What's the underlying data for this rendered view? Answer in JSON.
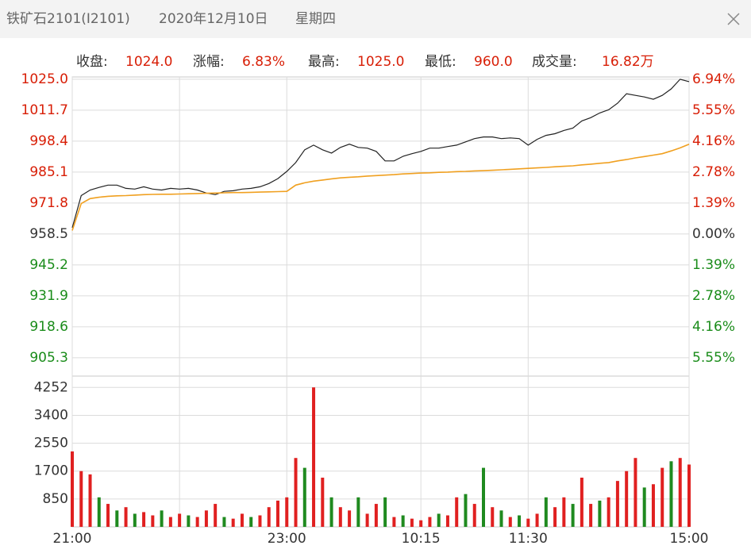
{
  "header": {
    "title": "铁矿石2101(I2101)",
    "date": "2020年12月10日",
    "weekday": "星期四"
  },
  "info": [
    {
      "label": "收盘:",
      "value": "1024.0"
    },
    {
      "label": "涨幅:",
      "value": "6.83%"
    },
    {
      "label": "最高:",
      "value": "1025.0"
    },
    {
      "label": "最低:",
      "value": "960.0"
    },
    {
      "label": "成交量:",
      "value": "16.82万"
    }
  ],
  "chart_data": [
    {
      "type": "line",
      "up_color": "#d81e06",
      "down_color": "#1a8c1a",
      "flat_color": "#333333",
      "grid": true,
      "x": [
        0,
        5,
        10,
        15,
        20,
        25,
        30,
        35,
        40,
        45,
        50,
        55,
        60,
        65,
        70,
        75,
        80,
        85,
        90,
        95,
        100,
        105,
        110,
        115,
        120,
        125,
        130,
        135,
        140,
        145,
        150,
        155,
        160,
        165,
        170,
        175,
        180,
        185,
        190,
        195,
        200,
        205,
        210,
        215,
        220,
        225,
        230,
        235,
        240,
        245,
        250,
        255,
        260,
        265,
        270,
        275,
        280,
        285,
        290,
        295,
        300,
        305,
        310,
        315,
        320,
        325,
        330,
        335,
        340,
        345
      ],
      "xlim": [
        0,
        345
      ],
      "ylim": [
        897.4,
        1026.0
      ],
      "yticks": [
        {
          "value": 1025.0,
          "label": "1025.0"
        },
        {
          "value": 1011.7,
          "label": "1011.7"
        },
        {
          "value": 998.4,
          "label": "998.4"
        },
        {
          "value": 985.1,
          "label": "985.1"
        },
        {
          "value": 971.8,
          "label": "971.8"
        },
        {
          "value": 958.5,
          "label": "958.5"
        },
        {
          "value": 945.2,
          "label": "945.2"
        },
        {
          "value": 931.9,
          "label": "931.9"
        },
        {
          "value": 918.6,
          "label": "918.6"
        },
        {
          "value": 905.3,
          "label": "905.3"
        }
      ],
      "y2lim": [
        -6.37,
        7.04
      ],
      "y2ticks": [
        {
          "value": 6.94,
          "label": "6.94%"
        },
        {
          "value": 5.55,
          "label": "5.55%"
        },
        {
          "value": 4.16,
          "label": "4.16%"
        },
        {
          "value": 2.78,
          "label": "2.78%"
        },
        {
          "value": 1.39,
          "label": "1.39%"
        },
        {
          "value": 0,
          "label": "0.00%"
        },
        {
          "value": -1.39,
          "label": "1.39%"
        },
        {
          "value": -2.78,
          "label": "2.78%"
        },
        {
          "value": -4.16,
          "label": "4.16%"
        },
        {
          "value": -5.55,
          "label": "5.55%"
        }
      ],
      "series": [
        {
          "name": "price",
          "color": "#222222",
          "values": [
            961.2,
            975.0,
            977.4,
            978.5,
            979.5,
            979.5,
            978.1,
            977.8,
            978.8,
            977.8,
            977.4,
            978.1,
            977.8,
            978.1,
            977.4,
            976.1,
            975.4,
            976.8,
            977.1,
            977.8,
            978.1,
            978.8,
            980.2,
            982.3,
            985.4,
            989.2,
            994.7,
            996.7,
            994.7,
            993.3,
            995.7,
            997.1,
            995.7,
            995.4,
            994.0,
            989.9,
            989.9,
            991.9,
            993.0,
            994.0,
            995.4,
            995.4,
            996.1,
            996.7,
            998.1,
            999.5,
            1000.2,
            1000.2,
            999.5,
            999.8,
            999.5,
            996.7,
            999.2,
            1000.9,
            1001.6,
            1003.0,
            1004.0,
            1007.1,
            1008.5,
            1010.5,
            1011.9,
            1014.7,
            1018.8,
            1018.1,
            1017.4,
            1016.4,
            1018.1,
            1020.9,
            1025.0,
            1024.0
          ]
        },
        {
          "name": "average",
          "color": "#f0a020",
          "values": [
            960.0,
            971.6,
            973.7,
            974.3,
            974.7,
            974.9,
            975.0,
            975.2,
            975.4,
            975.5,
            975.6,
            975.6,
            975.7,
            975.8,
            975.9,
            976.0,
            976.1,
            976.2,
            976.3,
            976.3,
            976.4,
            976.5,
            976.6,
            976.7,
            976.8,
            979.5,
            980.5,
            981.2,
            981.7,
            982.2,
            982.6,
            982.9,
            983.1,
            983.4,
            983.6,
            983.8,
            984.0,
            984.3,
            984.5,
            984.7,
            984.8,
            985.0,
            985.1,
            985.3,
            985.4,
            985.6,
            985.7,
            985.9,
            986.1,
            986.3,
            986.5,
            986.7,
            986.9,
            987.1,
            987.4,
            987.6,
            987.8,
            988.2,
            988.5,
            988.9,
            989.2,
            989.9,
            990.5,
            991.2,
            991.8,
            992.4,
            993.0,
            994.2,
            995.5,
            997.1
          ]
        }
      ]
    },
    {
      "type": "bar",
      "grid": true,
      "x": [
        0,
        5,
        10,
        15,
        20,
        25,
        30,
        35,
        40,
        45,
        50,
        55,
        60,
        65,
        70,
        75,
        80,
        85,
        90,
        95,
        100,
        105,
        110,
        115,
        120,
        125,
        130,
        135,
        140,
        145,
        150,
        155,
        160,
        165,
        170,
        175,
        180,
        185,
        190,
        195,
        200,
        205,
        210,
        215,
        220,
        225,
        230,
        235,
        240,
        245,
        250,
        255,
        260,
        265,
        270,
        275,
        280,
        285,
        290,
        295,
        300,
        305,
        310,
        315,
        320,
        325,
        330,
        335,
        340,
        345
      ],
      "xlim": [
        0,
        345
      ],
      "xticks": [
        {
          "value": 0,
          "label": "21:00"
        },
        {
          "value": 60,
          "label": null
        },
        {
          "value": 120,
          "label": "23:00"
        },
        {
          "value": 195,
          "label": "10:15"
        },
        {
          "value": 255,
          "label": "11:30"
        },
        {
          "value": 345,
          "label": "15:00"
        }
      ],
      "ylim": [
        0,
        4500
      ],
      "yticks": [
        850,
        1700,
        2550,
        3400,
        4252
      ],
      "series": [
        {
          "name": "volume",
          "values": [
            2300,
            1700,
            1600,
            900,
            700,
            500,
            600,
            400,
            450,
            350,
            500,
            300,
            400,
            350,
            300,
            500,
            700,
            300,
            250,
            400,
            300,
            350,
            600,
            800,
            900,
            2100,
            1800,
            4252,
            1500,
            900,
            600,
            500,
            900,
            400,
            700,
            900,
            300,
            350,
            250,
            200,
            300,
            400,
            350,
            900,
            1000,
            700,
            1800,
            600,
            500,
            300,
            350,
            250,
            400,
            900,
            600,
            900,
            700,
            1500,
            700,
            800,
            900,
            1400,
            1700,
            2100,
            1200,
            1300,
            1800,
            2000,
            2100,
            1900
          ],
          "colors": [
            "#e02020",
            "#e02020",
            "#e02020",
            "#1f8a1f",
            "#e02020",
            "#1f8a1f",
            "#e02020",
            "#1f8a1f",
            "#e02020",
            "#e02020",
            "#1f8a1f",
            "#e02020",
            "#e02020",
            "#1f8a1f",
            "#e02020",
            "#e02020",
            "#e02020",
            "#1f8a1f",
            "#e02020",
            "#e02020",
            "#1f8a1f",
            "#e02020",
            "#e02020",
            "#e02020",
            "#e02020",
            "#e02020",
            "#1f8a1f",
            "#e02020",
            "#e02020",
            "#1f8a1f",
            "#e02020",
            "#e02020",
            "#1f8a1f",
            "#e02020",
            "#e02020",
            "#1f8a1f",
            "#e02020",
            "#1f8a1f",
            "#e02020",
            "#e02020",
            "#e02020",
            "#1f8a1f",
            "#e02020",
            "#e02020",
            "#1f8a1f",
            "#e02020",
            "#1f8a1f",
            "#e02020",
            "#1f8a1f",
            "#e02020",
            "#1f8a1f",
            "#e02020",
            "#e02020",
            "#1f8a1f",
            "#e02020",
            "#e02020",
            "#1f8a1f",
            "#e02020",
            "#e02020",
            "#1f8a1f",
            "#e02020",
            "#e02020",
            "#e02020",
            "#e02020",
            "#1f8a1f",
            "#e02020",
            "#e02020",
            "#1f8a1f",
            "#e02020",
            "#e02020"
          ]
        }
      ]
    }
  ]
}
